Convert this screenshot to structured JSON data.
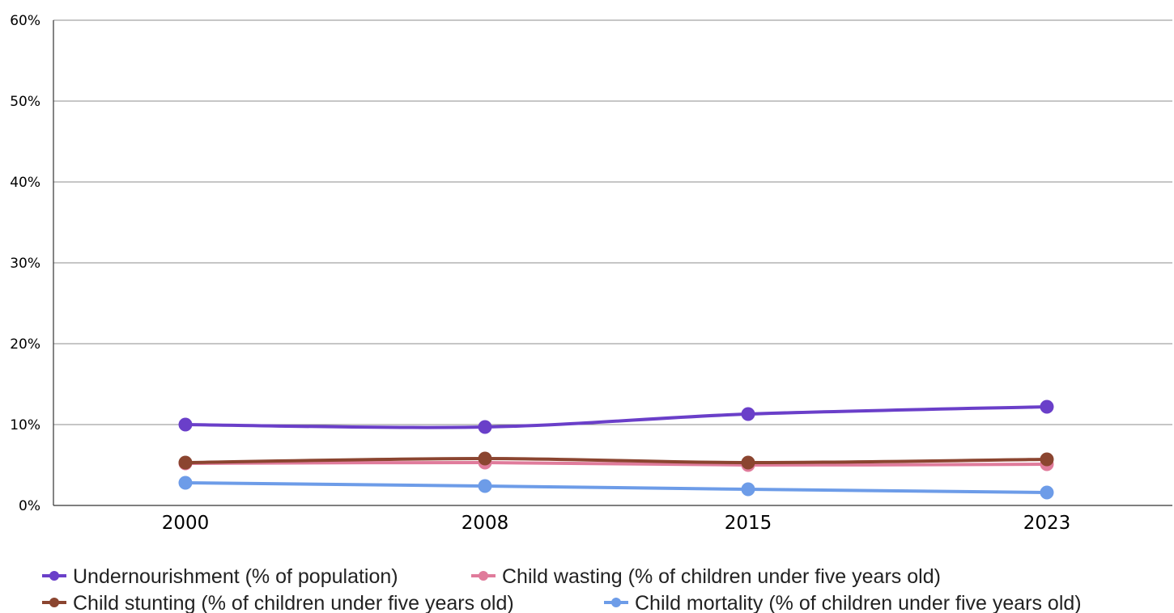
{
  "chart_data": {
    "type": "line",
    "title": "",
    "xlabel": "",
    "ylabel": "",
    "categories": [
      "2000",
      "2008",
      "2015",
      "2023"
    ],
    "y_ticks": [
      "0%",
      "10%",
      "20%",
      "30%",
      "40%",
      "50%",
      "60%"
    ],
    "ylim": [
      0,
      60
    ],
    "y_unit": "%",
    "grid": true,
    "legend_position": "bottom",
    "series": [
      {
        "name": "Undernourishment (% of population)",
        "color": "#6a3fc9",
        "values": [
          10.0,
          9.7,
          11.3,
          12.2
        ]
      },
      {
        "name": "Child wasting (% of children under five years old)",
        "color": "#e07b9b",
        "values": [
          5.2,
          5.3,
          5.0,
          5.1
        ]
      },
      {
        "name": "Child stunting (% of children under five years old)",
        "color": "#8b4530",
        "values": [
          5.3,
          5.8,
          5.3,
          5.7
        ]
      },
      {
        "name": "Child mortality (% of children under five years old)",
        "color": "#6d9ce8",
        "values": [
          2.8,
          2.4,
          2.0,
          1.6
        ]
      }
    ]
  }
}
